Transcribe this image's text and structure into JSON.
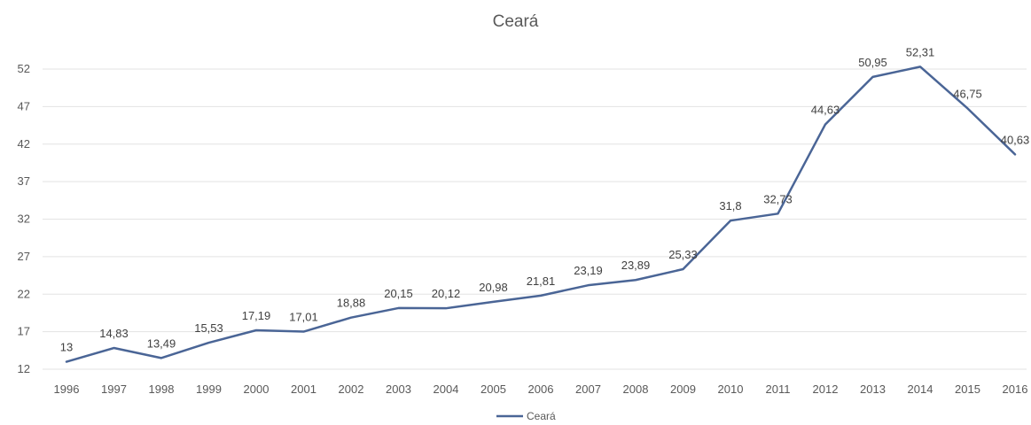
{
  "chart_data": {
    "type": "line",
    "title": "Ceará",
    "xlabel": "",
    "ylabel": "",
    "categories": [
      "1996",
      "1997",
      "1998",
      "1999",
      "2000",
      "2001",
      "2002",
      "2003",
      "2004",
      "2005",
      "2006",
      "2007",
      "2008",
      "2009",
      "2010",
      "2011",
      "2012",
      "2013",
      "2014",
      "2015",
      "2016"
    ],
    "series": [
      {
        "name": "Ceará",
        "color": "#4a6596",
        "values": [
          13,
          14.83,
          13.49,
          15.53,
          17.19,
          17.01,
          18.88,
          20.15,
          20.12,
          20.98,
          21.81,
          23.19,
          23.89,
          25.33,
          31.8,
          32.73,
          44.63,
          50.95,
          52.31,
          46.75,
          40.63
        ],
        "labels": [
          "13",
          "14,83",
          "13,49",
          "15,53",
          "17,19",
          "17,01",
          "18,88",
          "20,15",
          "20,12",
          "20,98",
          "21,81",
          "23,19",
          "23,89",
          "25,33",
          "31,8",
          "32,73",
          "44,63",
          "50,95",
          "52,31",
          "46,75",
          "40,63"
        ]
      }
    ],
    "yticks": [
      12,
      17,
      22,
      27,
      32,
      37,
      42,
      47,
      52
    ],
    "ylim": [
      12,
      52
    ],
    "grid": true,
    "legend": "bottom"
  }
}
